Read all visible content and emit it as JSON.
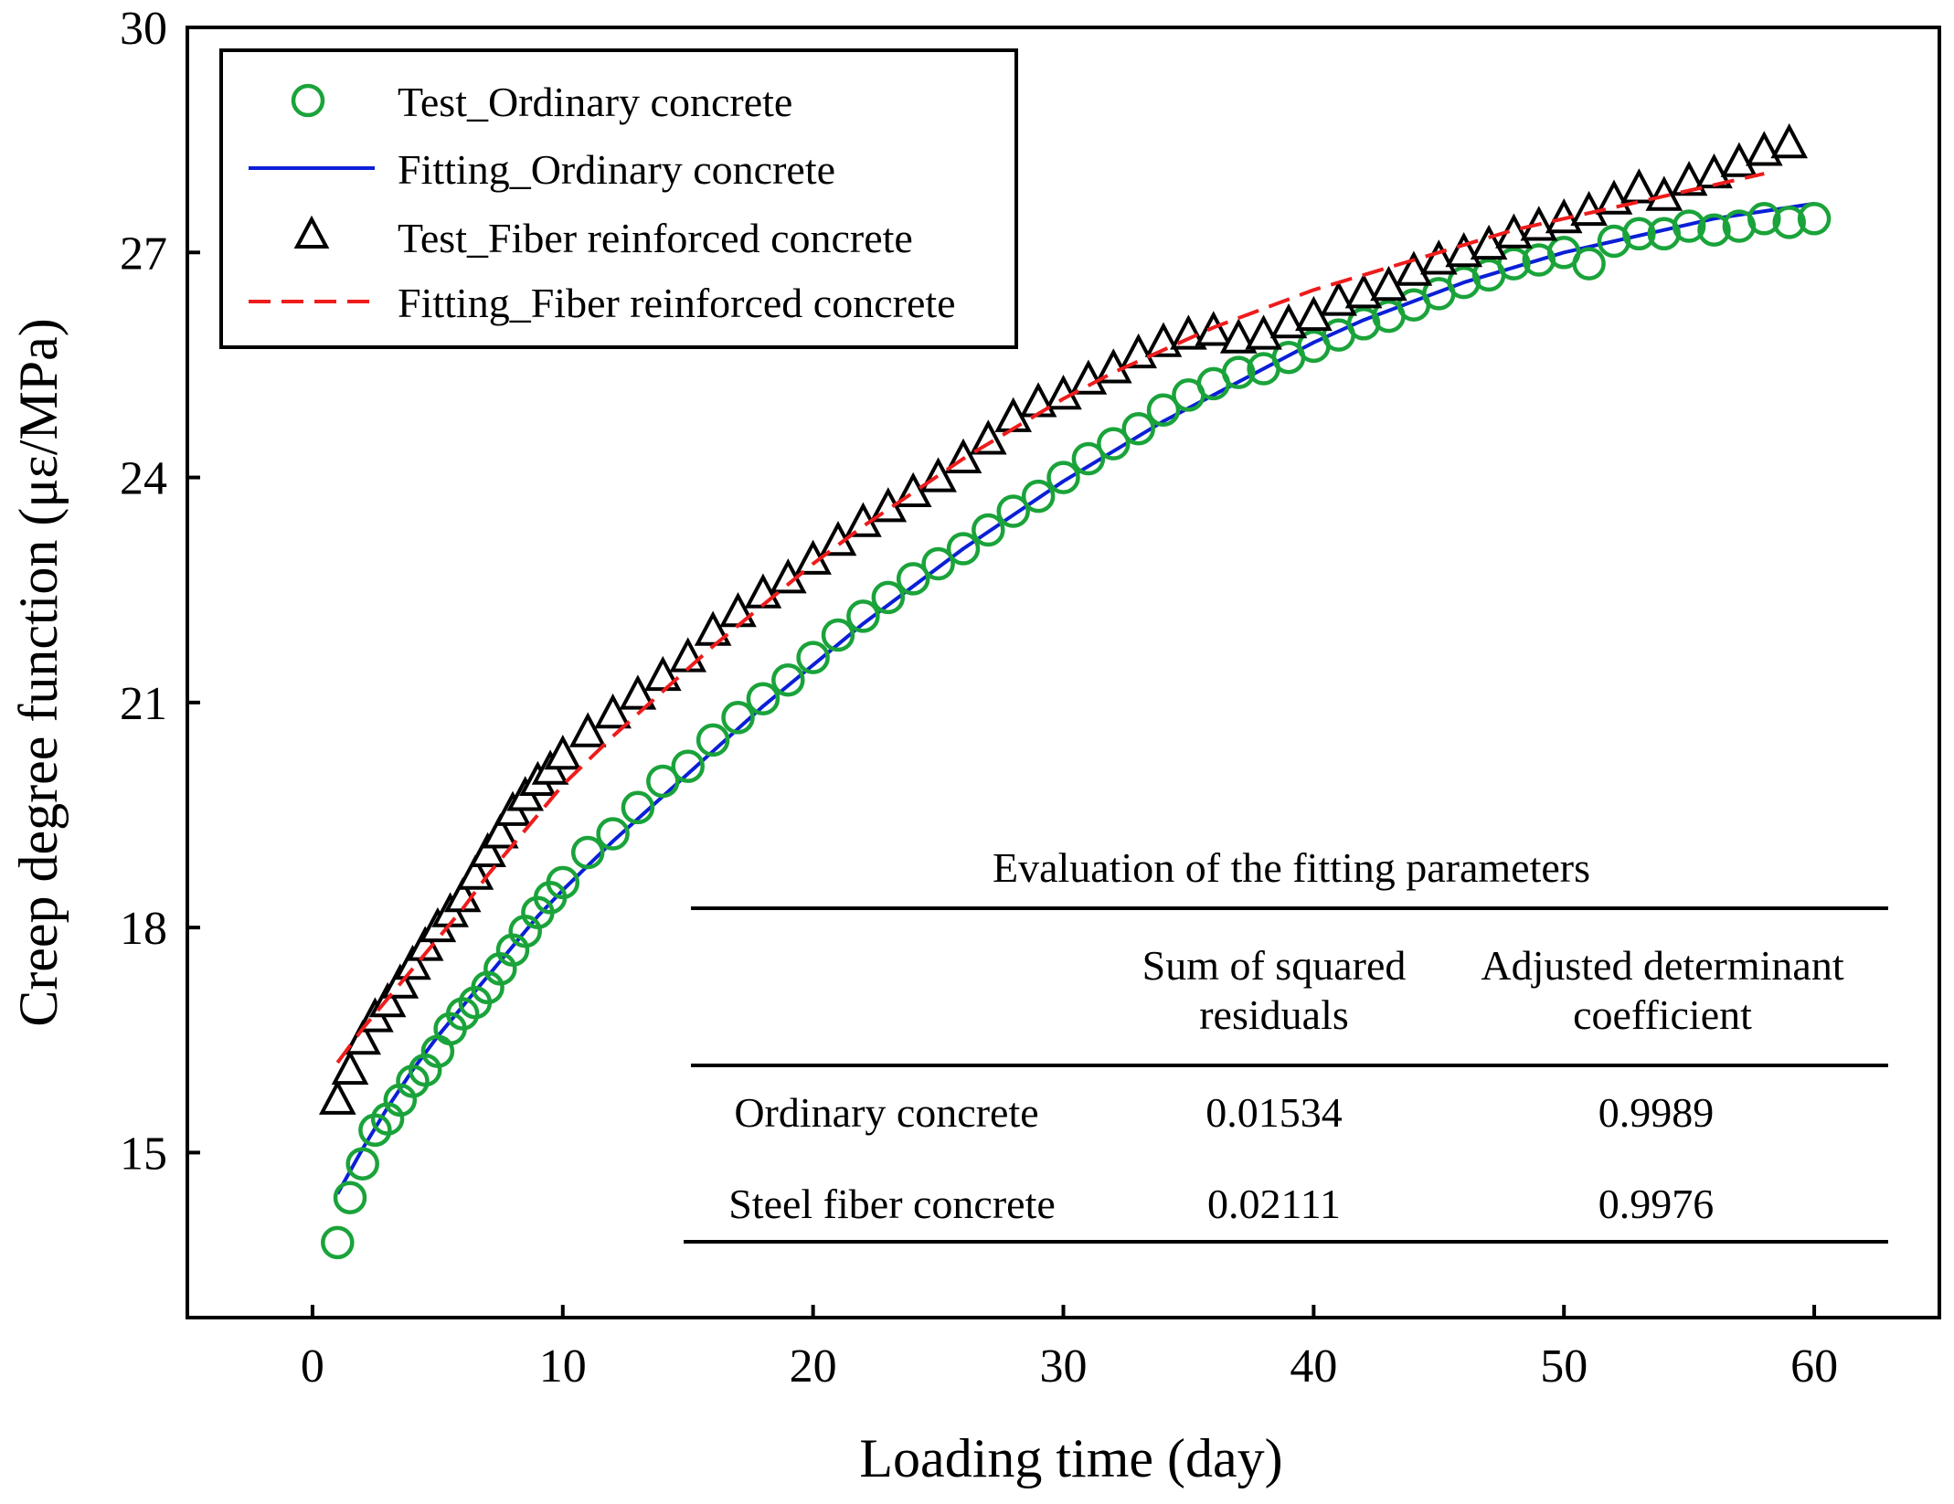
{
  "chart_data": {
    "type": "scatter",
    "title": "",
    "xlabel": "Loading time (day)",
    "ylabel": "Creep degree function (με/MPa)",
    "xlim": [
      -5,
      65
    ],
    "ylim": [
      12.8,
      30
    ],
    "x_ticks": [
      0,
      10,
      20,
      30,
      40,
      50,
      60
    ],
    "y_ticks": [
      15,
      18,
      21,
      24,
      27,
      30
    ],
    "legend_position": "top-left",
    "legend": [
      {
        "label": "Test_Ordinary concrete",
        "marker": "circle",
        "color": "#1aa33a"
      },
      {
        "label": "Fitting_Ordinary concrete",
        "line": "solid",
        "color": "#0a1fd6"
      },
      {
        "label": "Test_Fiber reinforced concrete",
        "marker": "triangle",
        "color": "#000000"
      },
      {
        "label": "Fitting_Fiber reinforced concrete",
        "line": "dashed",
        "color": "#ee1c1c"
      }
    ],
    "series": [
      {
        "name": "Test_Ordinary concrete",
        "kind": "points",
        "marker": "circle",
        "color": "#1aa33a",
        "x": [
          1,
          1.5,
          2,
          2.5,
          3,
          3.5,
          4,
          4.5,
          5,
          5.5,
          6,
          6.5,
          7,
          7.5,
          8,
          8.5,
          9,
          9.5,
          10,
          11,
          12,
          13,
          14,
          15,
          16,
          17,
          18,
          19,
          20,
          21,
          22,
          23,
          24,
          25,
          26,
          27,
          28,
          29,
          30,
          31,
          32,
          33,
          34,
          35,
          36,
          37,
          38,
          39,
          40,
          41,
          42,
          43,
          44,
          45,
          46,
          47,
          48,
          49,
          50,
          51,
          52,
          53,
          54,
          55,
          56,
          57,
          58,
          59,
          60
        ],
        "y": [
          13.8,
          14.4,
          14.85,
          15.3,
          15.45,
          15.7,
          15.95,
          16.1,
          16.35,
          16.65,
          16.85,
          17.0,
          17.2,
          17.45,
          17.7,
          17.95,
          18.2,
          18.4,
          18.6,
          19.0,
          19.25,
          19.6,
          19.95,
          20.15,
          20.5,
          20.8,
          21.05,
          21.3,
          21.6,
          21.9,
          22.15,
          22.4,
          22.65,
          22.85,
          23.05,
          23.3,
          23.55,
          23.75,
          24.0,
          24.25,
          24.45,
          24.65,
          24.9,
          25.1,
          25.25,
          25.4,
          25.45,
          25.6,
          25.75,
          25.9,
          26.05,
          26.15,
          26.3,
          26.45,
          26.6,
          26.7,
          26.85,
          26.9,
          27.0,
          26.85,
          27.15,
          27.25,
          27.25,
          27.35,
          27.3,
          27.35,
          27.45,
          27.4,
          27.45
        ]
      },
      {
        "name": "Fitting_Ordinary concrete",
        "kind": "line",
        "style": "solid",
        "color": "#0a1fd6",
        "x": [
          1,
          2,
          3,
          4,
          5,
          6,
          7,
          8,
          9,
          10,
          12,
          14,
          16,
          18,
          20,
          22,
          24,
          26,
          28,
          30,
          32,
          34,
          36,
          38,
          40,
          42,
          44,
          46,
          48,
          50,
          52,
          54,
          56,
          58,
          60
        ],
        "y": [
          14.45,
          15.05,
          15.6,
          16.1,
          16.55,
          16.95,
          17.35,
          17.75,
          18.15,
          18.5,
          19.15,
          19.75,
          20.35,
          20.95,
          21.5,
          22.05,
          22.55,
          23.05,
          23.5,
          23.95,
          24.35,
          24.75,
          25.1,
          25.45,
          25.8,
          26.1,
          26.35,
          26.6,
          26.8,
          27.0,
          27.15,
          27.3,
          27.45,
          27.55,
          27.65
        ]
      },
      {
        "name": "Test_Fiber reinforced concrete",
        "kind": "points",
        "marker": "triangle",
        "color": "#000000",
        "x": [
          1,
          1.5,
          2,
          2.5,
          3,
          3.5,
          4,
          4.5,
          5,
          5.5,
          6,
          6.5,
          7,
          7.5,
          8,
          8.5,
          9,
          9.5,
          10,
          11,
          12,
          13,
          14,
          15,
          16,
          17,
          18,
          19,
          20,
          21,
          22,
          23,
          24,
          25,
          26,
          27,
          28,
          29,
          30,
          31,
          32,
          33,
          34,
          35,
          36,
          37,
          38,
          39,
          40,
          41,
          42,
          43,
          44,
          45,
          46,
          47,
          48,
          49,
          50,
          51,
          52,
          53,
          54,
          55,
          56,
          57,
          58,
          59
        ],
        "y": [
          15.7,
          16.1,
          16.5,
          16.8,
          17.0,
          17.25,
          17.5,
          17.75,
          18.0,
          18.2,
          18.4,
          18.7,
          19.0,
          19.25,
          19.55,
          19.75,
          19.95,
          20.1,
          20.3,
          20.6,
          20.85,
          21.1,
          21.35,
          21.6,
          21.95,
          22.2,
          22.45,
          22.65,
          22.9,
          23.15,
          23.4,
          23.6,
          23.8,
          24.0,
          24.25,
          24.5,
          24.8,
          25.0,
          25.1,
          25.3,
          25.45,
          25.65,
          25.8,
          25.9,
          25.95,
          25.85,
          25.9,
          26.05,
          26.15,
          26.35,
          26.45,
          26.55,
          26.75,
          26.9,
          27.0,
          27.1,
          27.25,
          27.35,
          27.45,
          27.55,
          27.7,
          27.85,
          27.75,
          27.95,
          28.05,
          28.2,
          28.35,
          28.45
        ]
      },
      {
        "name": "Fitting_Fiber reinforced concrete",
        "kind": "line",
        "style": "dashed",
        "color": "#ee1c1c",
        "x": [
          1,
          2,
          3,
          4,
          5,
          6,
          7,
          8,
          9,
          10,
          12,
          14,
          16,
          18,
          20,
          22,
          24,
          26,
          28,
          30,
          32,
          34,
          36,
          38,
          40,
          42,
          44,
          46,
          48,
          50,
          52,
          54,
          56,
          58
        ],
        "y": [
          16.2,
          16.65,
          17.05,
          17.45,
          17.85,
          18.25,
          18.7,
          19.1,
          19.5,
          19.9,
          20.55,
          21.15,
          21.75,
          22.3,
          22.85,
          23.35,
          23.8,
          24.25,
          24.65,
          25.05,
          25.4,
          25.7,
          26.0,
          26.25,
          26.5,
          26.7,
          26.9,
          27.1,
          27.3,
          27.45,
          27.6,
          27.75,
          27.9,
          28.05
        ]
      }
    ]
  },
  "table": {
    "title": "Evaluation of the fitting parameters",
    "header_col1_line1": "Sum of squared",
    "header_col1_line2": "residuals",
    "header_col2_line1": "Adjusted determinant",
    "header_col2_line2": "coefficient",
    "rows": [
      {
        "name": "Ordinary concrete",
        "ssr": "0.01534",
        "adj_r2": "0.9989"
      },
      {
        "name": "Steel fiber concrete",
        "ssr": "0.02111",
        "adj_r2": "0.9976"
      }
    ]
  }
}
